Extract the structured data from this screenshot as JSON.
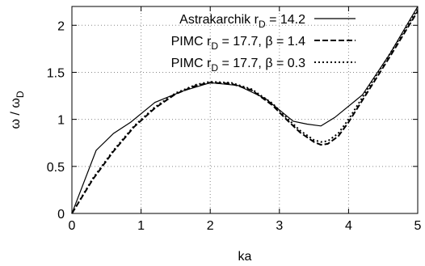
{
  "chart_data": {
    "type": "line",
    "xlabel": "ka",
    "ylabel_main": "ω / ω",
    "ylabel_sub": "D",
    "xlim": [
      0,
      5
    ],
    "ylim": [
      0,
      2.2
    ],
    "xticks": [
      0,
      1,
      2,
      3,
      4,
      5
    ],
    "xtick_labels": [
      "0",
      "1",
      "2",
      "3",
      "4",
      "5"
    ],
    "yticks": [
      0,
      0.5,
      1,
      1.5,
      2
    ],
    "ytick_labels": [
      "0",
      "0.5",
      "1",
      "1.5",
      "2"
    ],
    "grid": true,
    "grid_style": "dotted",
    "legend_placement": "top-right",
    "series": [
      {
        "legend_label": {
          "a": "Astrakarchik   r",
          "sub": "D",
          "b": " = 14.2"
        },
        "line_style": "solid",
        "x": [
          0,
          0.35,
          0.6,
          0.85,
          1.2,
          1.6,
          2.0,
          2.4,
          2.8,
          3.2,
          3.4,
          3.6,
          3.8,
          4.2,
          4.6,
          5.0
        ],
        "y": [
          0,
          0.67,
          0.85,
          0.97,
          1.18,
          1.3,
          1.39,
          1.36,
          1.22,
          0.98,
          0.95,
          0.93,
          1.02,
          1.26,
          1.7,
          2.2
        ]
      },
      {
        "legend_label": {
          "a": "PIMC   r",
          "sub": "D",
          "b": " = 17.7, β = 1.4"
        },
        "line_style": "dashed",
        "x": [
          0,
          0.3,
          0.6,
          0.9,
          1.2,
          1.5,
          1.8,
          2.0,
          2.3,
          2.6,
          2.9,
          3.1,
          3.3,
          3.5,
          3.6,
          3.7,
          3.85,
          4.0,
          4.3,
          4.6,
          5.0
        ],
        "y": [
          0,
          0.36,
          0.66,
          0.92,
          1.12,
          1.27,
          1.36,
          1.39,
          1.38,
          1.31,
          1.15,
          1.0,
          0.86,
          0.76,
          0.73,
          0.74,
          0.82,
          0.97,
          1.32,
          1.67,
          2.15
        ]
      },
      {
        "legend_label": {
          "a": "PIMC   r",
          "sub": "D",
          "b": " = 17.7, β = 0.3"
        },
        "line_style": "dotted",
        "x": [
          0,
          0.3,
          0.6,
          0.9,
          1.2,
          1.5,
          1.8,
          2.0,
          2.3,
          2.6,
          2.9,
          3.1,
          3.3,
          3.5,
          3.6,
          3.7,
          3.85,
          4.0,
          4.3,
          4.6,
          5.0
        ],
        "y": [
          0,
          0.37,
          0.67,
          0.93,
          1.13,
          1.28,
          1.37,
          1.4,
          1.39,
          1.32,
          1.17,
          1.02,
          0.88,
          0.78,
          0.76,
          0.77,
          0.85,
          1.0,
          1.35,
          1.7,
          2.17
        ]
      }
    ]
  }
}
